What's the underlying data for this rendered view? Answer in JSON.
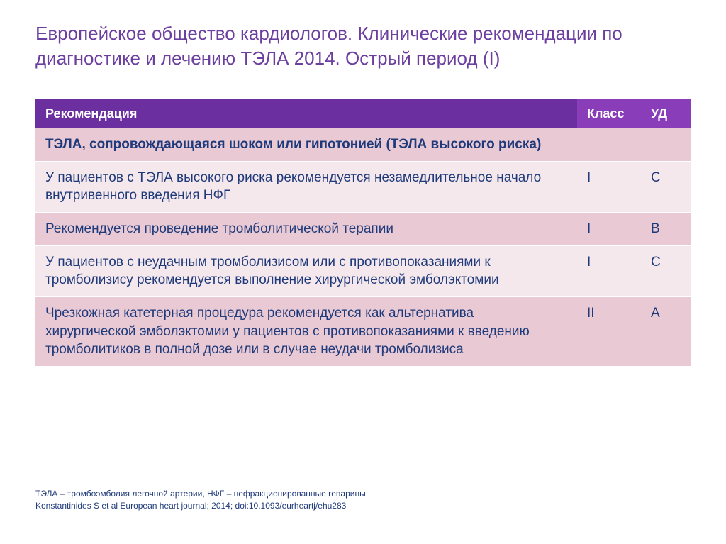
{
  "title": "Европейское общество кардиологов. Клинические рекомендации по диагностике и лечению ТЭЛА 2014. Острый период (I)",
  "title_color": "#6b3fa0",
  "header_bg": "#6b2fa0",
  "header_bg_alt": "#8a3db8",
  "section_bg": "#e8c9d4",
  "row_bg_light": "#f5e8ed",
  "row_bg_dark": "#e8c9d4",
  "cell_text_color": "#1f3a7a",
  "section_text_color": "#1f3a7a",
  "footnote_color": "#1f3a7a",
  "columns": {
    "rec": "Рекомендация",
    "class": "Класс",
    "ud": "УД"
  },
  "section_title": "ТЭЛА, сопровождающаяся шоком или гипотонией (ТЭЛА высокого риска)",
  "rows": [
    {
      "rec": "У пациентов с ТЭЛА высокого риска рекомендуется незамедлительное начало внутривенного введения НФГ",
      "class": "I",
      "ud": "C",
      "shade": "light"
    },
    {
      "rec": "Рекомендуется проведение тромболитической терапии",
      "class": "I",
      "ud": "B",
      "shade": "dark"
    },
    {
      "rec": "У пациентов с неудачным тромболизисом или с противопоказаниями к тромболизису рекомендуется выполнение хирургической эмболэктомии",
      "class": "I",
      "ud": "C",
      "shade": "light"
    },
    {
      "rec": "Чрезкожная катетерная процедура рекомендуется как альтернатива хирургической эмболэктомии у пациентов с противопоказаниями к введению тромболитиков в полной дозе или в случае неудачи тромболизиса",
      "class": "II",
      "ud": "A",
      "shade": "dark"
    }
  ],
  "footnote_line1": "ТЭЛА – тромбоэмболия легочной артерии, НФГ – нефракционированные гепарины",
  "footnote_line2": "Konstantinides S et al European heart journal; 2014; doi:10.1093/eurheartj/ehu283"
}
